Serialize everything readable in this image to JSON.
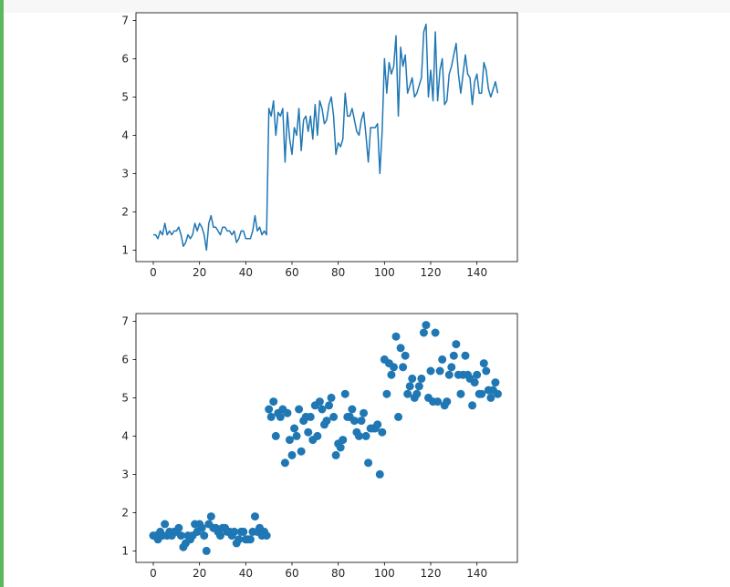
{
  "chart_data": [
    {
      "type": "line",
      "title": "",
      "xlabel": "",
      "ylabel": "",
      "xlim": [
        -7.5,
        157.5
      ],
      "ylim": [
        0.7,
        7.2
      ],
      "xticks": [
        0,
        20,
        40,
        60,
        80,
        100,
        120,
        140
      ],
      "yticks": [
        1,
        2,
        3,
        4,
        5,
        6,
        7
      ],
      "grid": false,
      "series": [
        {
          "color": "#1f77b4",
          "x": [
            0,
            1,
            2,
            3,
            4,
            5,
            6,
            7,
            8,
            9,
            10,
            11,
            12,
            13,
            14,
            15,
            16,
            17,
            18,
            19,
            20,
            21,
            22,
            23,
            24,
            25,
            26,
            27,
            28,
            29,
            30,
            31,
            32,
            33,
            34,
            35,
            36,
            37,
            38,
            39,
            40,
            41,
            42,
            43,
            44,
            45,
            46,
            47,
            48,
            49,
            50,
            51,
            52,
            53,
            54,
            55,
            56,
            57,
            58,
            59,
            60,
            61,
            62,
            63,
            64,
            65,
            66,
            67,
            68,
            69,
            70,
            71,
            72,
            73,
            74,
            75,
            76,
            77,
            78,
            79,
            80,
            81,
            82,
            83,
            84,
            85,
            86,
            87,
            88,
            89,
            90,
            91,
            92,
            93,
            94,
            95,
            96,
            97,
            98,
            99,
            100,
            101,
            102,
            103,
            104,
            105,
            106,
            107,
            108,
            109,
            110,
            111,
            112,
            113,
            114,
            115,
            116,
            117,
            118,
            119,
            120,
            121,
            122,
            123,
            124,
            125,
            126,
            127,
            128,
            129,
            130,
            131,
            132,
            133,
            134,
            135,
            136,
            137,
            138,
            139,
            140,
            141,
            142,
            143,
            144,
            145,
            146,
            147,
            148,
            149
          ],
          "y": [
            1.4,
            1.4,
            1.3,
            1.5,
            1.4,
            1.7,
            1.4,
            1.5,
            1.4,
            1.5,
            1.5,
            1.6,
            1.4,
            1.1,
            1.2,
            1.4,
            1.3,
            1.4,
            1.7,
            1.5,
            1.7,
            1.6,
            1.4,
            1.0,
            1.7,
            1.9,
            1.6,
            1.6,
            1.5,
            1.4,
            1.6,
            1.6,
            1.5,
            1.5,
            1.4,
            1.5,
            1.2,
            1.3,
            1.5,
            1.5,
            1.3,
            1.3,
            1.3,
            1.5,
            1.9,
            1.5,
            1.6,
            1.4,
            1.5,
            1.4,
            4.7,
            4.5,
            4.9,
            4.0,
            4.6,
            4.5,
            4.7,
            3.3,
            4.6,
            3.9,
            3.5,
            4.2,
            4.0,
            4.7,
            3.6,
            4.4,
            4.5,
            4.1,
            4.5,
            3.9,
            4.8,
            4.0,
            4.9,
            4.7,
            4.3,
            4.4,
            4.8,
            5.0,
            4.5,
            3.5,
            3.8,
            3.7,
            3.9,
            5.1,
            4.5,
            4.5,
            4.7,
            4.4,
            4.1,
            4.0,
            4.4,
            4.6,
            4.0,
            3.3,
            4.2,
            4.2,
            4.2,
            4.3,
            3.0,
            4.1,
            6.0,
            5.1,
            5.9,
            5.6,
            5.8,
            6.6,
            4.5,
            6.3,
            5.8,
            6.1,
            5.1,
            5.3,
            5.5,
            5.0,
            5.1,
            5.3,
            5.5,
            6.7,
            6.9,
            5.0,
            5.7,
            4.9,
            6.7,
            4.9,
            5.7,
            6.0,
            4.8,
            4.9,
            5.6,
            5.8,
            6.1,
            6.4,
            5.6,
            5.1,
            5.6,
            6.1,
            5.6,
            5.5,
            4.8,
            5.4,
            5.6,
            5.1,
            5.1,
            5.9,
            5.7,
            5.2,
            5.0,
            5.2,
            5.4,
            5.1
          ]
        }
      ]
    },
    {
      "type": "scatter",
      "title": "",
      "xlabel": "",
      "ylabel": "",
      "xlim": [
        -7.5,
        157.5
      ],
      "ylim": [
        0.7,
        7.2
      ],
      "xticks": [
        0,
        20,
        40,
        60,
        80,
        100,
        120,
        140
      ],
      "yticks": [
        1,
        2,
        3,
        4,
        5,
        6,
        7
      ],
      "grid": false,
      "series": [
        {
          "color": "#1f77b4",
          "x": [
            0,
            1,
            2,
            3,
            4,
            5,
            6,
            7,
            8,
            9,
            10,
            11,
            12,
            13,
            14,
            15,
            16,
            17,
            18,
            19,
            20,
            21,
            22,
            23,
            24,
            25,
            26,
            27,
            28,
            29,
            30,
            31,
            32,
            33,
            34,
            35,
            36,
            37,
            38,
            39,
            40,
            41,
            42,
            43,
            44,
            45,
            46,
            47,
            48,
            49,
            50,
            51,
            52,
            53,
            54,
            55,
            56,
            57,
            58,
            59,
            60,
            61,
            62,
            63,
            64,
            65,
            66,
            67,
            68,
            69,
            70,
            71,
            72,
            73,
            74,
            75,
            76,
            77,
            78,
            79,
            80,
            81,
            82,
            83,
            84,
            85,
            86,
            87,
            88,
            89,
            90,
            91,
            92,
            93,
            94,
            95,
            96,
            97,
            98,
            99,
            100,
            101,
            102,
            103,
            104,
            105,
            106,
            107,
            108,
            109,
            110,
            111,
            112,
            113,
            114,
            115,
            116,
            117,
            118,
            119,
            120,
            121,
            122,
            123,
            124,
            125,
            126,
            127,
            128,
            129,
            130,
            131,
            132,
            133,
            134,
            135,
            136,
            137,
            138,
            139,
            140,
            141,
            142,
            143,
            144,
            145,
            146,
            147,
            148,
            149
          ],
          "y": [
            1.4,
            1.4,
            1.3,
            1.5,
            1.4,
            1.7,
            1.4,
            1.5,
            1.4,
            1.5,
            1.5,
            1.6,
            1.4,
            1.1,
            1.2,
            1.4,
            1.3,
            1.4,
            1.7,
            1.5,
            1.7,
            1.6,
            1.4,
            1.0,
            1.7,
            1.9,
            1.6,
            1.6,
            1.5,
            1.4,
            1.6,
            1.6,
            1.5,
            1.5,
            1.4,
            1.5,
            1.2,
            1.3,
            1.5,
            1.5,
            1.3,
            1.3,
            1.3,
            1.5,
            1.9,
            1.5,
            1.6,
            1.4,
            1.5,
            1.4,
            4.7,
            4.5,
            4.9,
            4.0,
            4.6,
            4.5,
            4.7,
            3.3,
            4.6,
            3.9,
            3.5,
            4.2,
            4.0,
            4.7,
            3.6,
            4.4,
            4.5,
            4.1,
            4.5,
            3.9,
            4.8,
            4.0,
            4.9,
            4.7,
            4.3,
            4.4,
            4.8,
            5.0,
            4.5,
            3.5,
            3.8,
            3.7,
            3.9,
            5.1,
            4.5,
            4.5,
            4.7,
            4.4,
            4.1,
            4.0,
            4.4,
            4.6,
            4.0,
            3.3,
            4.2,
            4.2,
            4.2,
            4.3,
            3.0,
            4.1,
            6.0,
            5.1,
            5.9,
            5.6,
            5.8,
            6.6,
            4.5,
            6.3,
            5.8,
            6.1,
            5.1,
            5.3,
            5.5,
            5.0,
            5.1,
            5.3,
            5.5,
            6.7,
            6.9,
            5.0,
            5.7,
            4.9,
            6.7,
            4.9,
            5.7,
            6.0,
            4.8,
            4.9,
            5.6,
            5.8,
            6.1,
            6.4,
            5.6,
            5.1,
            5.6,
            6.1,
            5.6,
            5.5,
            4.8,
            5.4,
            5.6,
            5.1,
            5.1,
            5.9,
            5.7,
            5.2,
            5.0,
            5.2,
            5.4,
            5.1
          ]
        }
      ]
    }
  ]
}
